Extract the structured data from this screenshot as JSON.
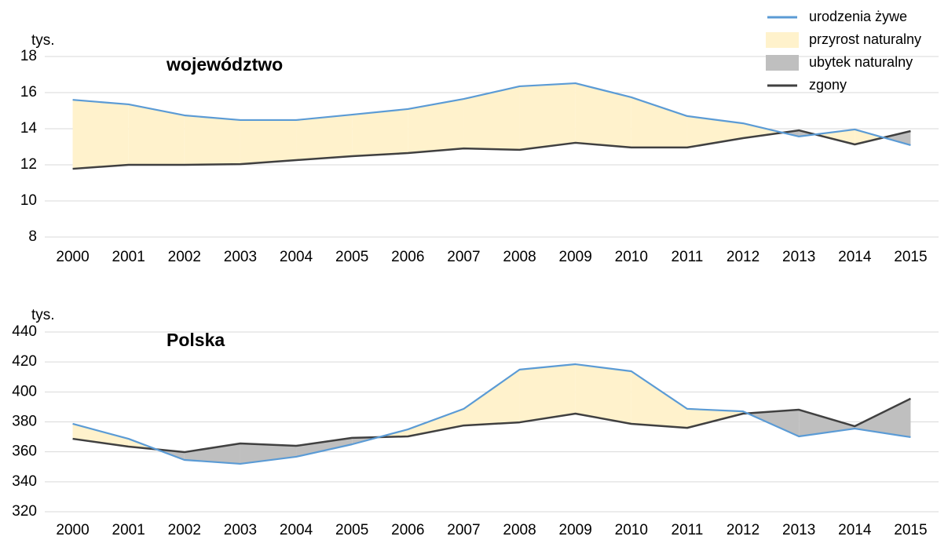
{
  "chart_data": [
    {
      "type": "line",
      "title": "województwo",
      "y_unit": "tys.",
      "legend": "top right",
      "categories": [
        "2000",
        "2001",
        "2002",
        "2003",
        "2004",
        "2005",
        "2006",
        "2007",
        "2008",
        "2009",
        "2010",
        "2011",
        "2012",
        "2013",
        "2014",
        "2015"
      ],
      "series": [
        {
          "name": "urodzenia żywe",
          "color": "#5b9bd5",
          "values": [
            15.6,
            15.35,
            14.74,
            14.48,
            14.48,
            14.78,
            15.09,
            15.65,
            16.35,
            16.52,
            15.74,
            14.7,
            14.3,
            13.57,
            13.96,
            13.09
          ]
        },
        {
          "name": "zgony",
          "color": "#404040",
          "values": [
            11.78,
            12.0,
            12.0,
            12.04,
            12.26,
            12.48,
            12.65,
            12.91,
            12.83,
            13.22,
            12.96,
            12.96,
            13.48,
            13.91,
            13.13,
            13.87
          ]
        }
      ],
      "fills": [
        {
          "name": "przyrost naturalny",
          "color": "#fff2cc"
        },
        {
          "name": "ubytek naturalny",
          "color": "#bfbfbf"
        }
      ],
      "ylim": [
        8,
        18
      ],
      "yticks": [
        8,
        10,
        12,
        14,
        16,
        18
      ],
      "grid": true
    },
    {
      "type": "line",
      "title": "Polska",
      "y_unit": "tys.",
      "categories": [
        "2000",
        "2001",
        "2002",
        "2003",
        "2004",
        "2005",
        "2006",
        "2007",
        "2008",
        "2009",
        "2010",
        "2011",
        "2012",
        "2013",
        "2014",
        "2015"
      ],
      "series": [
        {
          "color": "#5b9bd5",
          "values": [
            378.7,
            368.7,
            354.6,
            352,
            356.7,
            365,
            375,
            388.7,
            414.9,
            418.5,
            413.8,
            388.7,
            387,
            370.3,
            375.5,
            369.8
          ]
        },
        {
          "color": "#404040",
          "values": [
            368.7,
            363.5,
            359.8,
            365.6,
            364,
            369.3,
            370.3,
            377.6,
            379.7,
            385.5,
            378.7,
            376,
            385.5,
            388.1,
            377.1,
            395.5
          ]
        }
      ],
      "fills": [
        {
          "color": "#fff2cc"
        },
        {
          "color": "#bfbfbf"
        }
      ],
      "ylim": [
        320,
        440
      ],
      "yticks": [
        320,
        340,
        360,
        380,
        400,
        420,
        440
      ],
      "grid": true
    }
  ]
}
